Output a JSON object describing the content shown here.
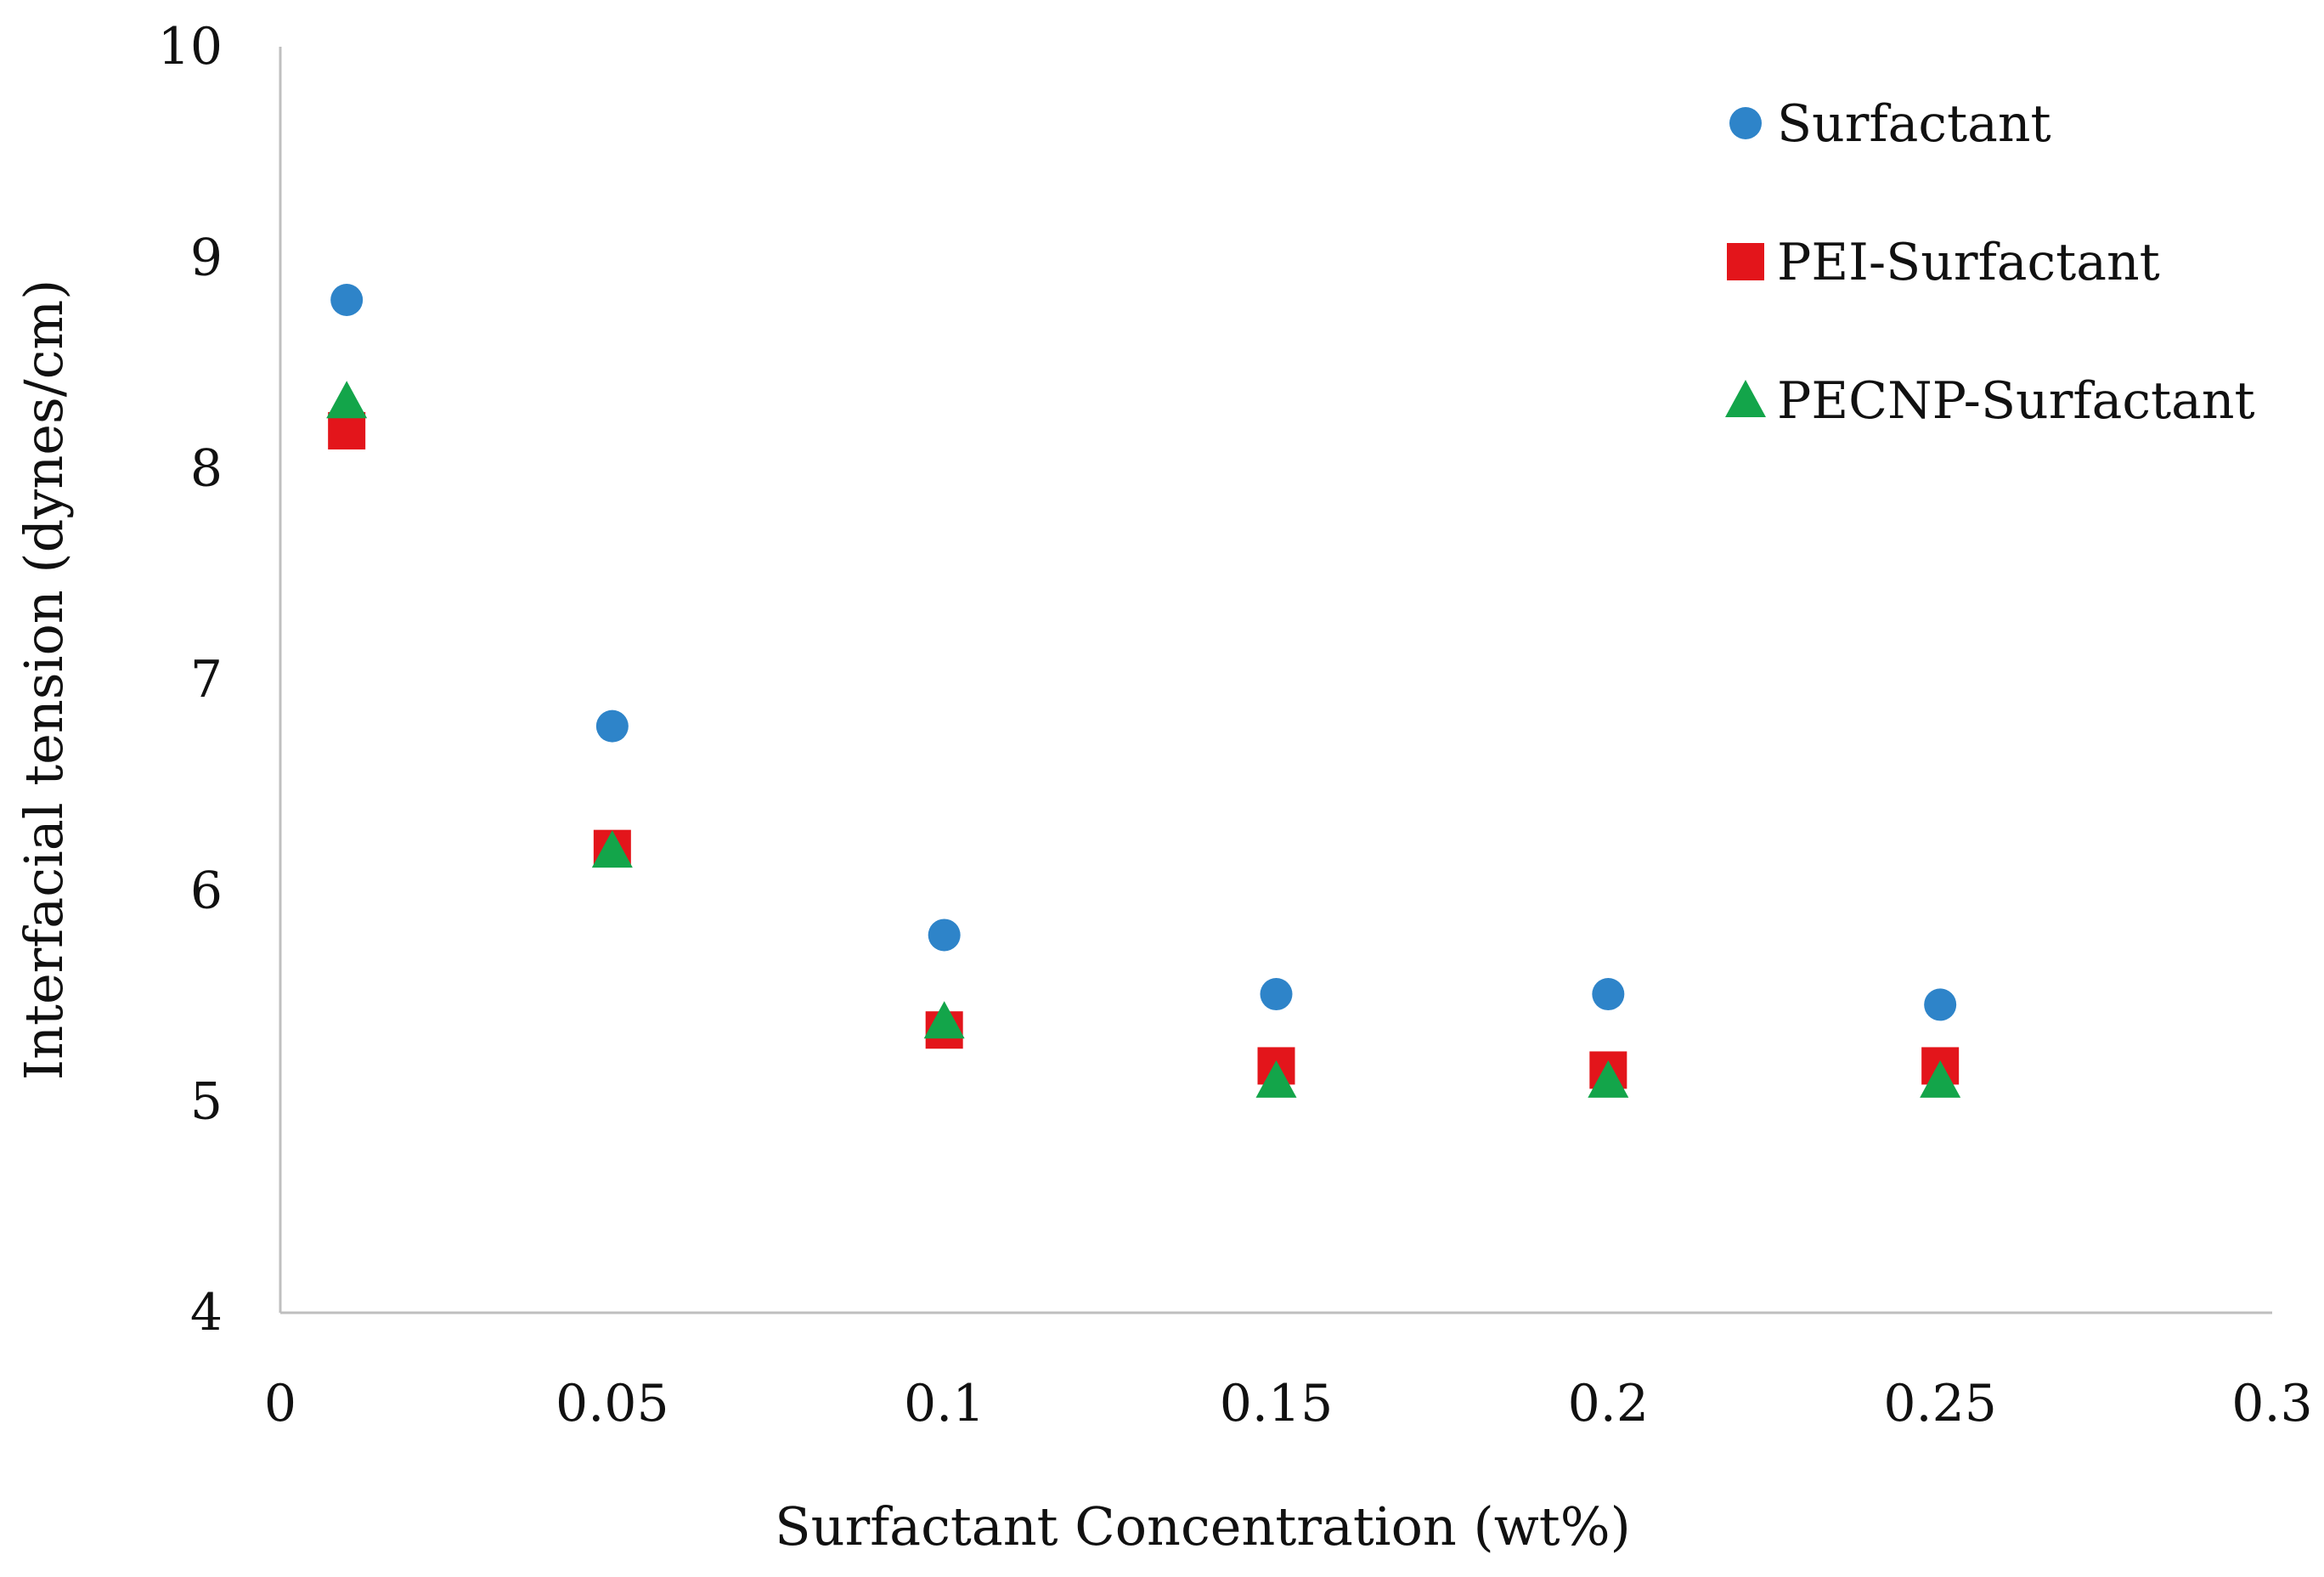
{
  "chart_data": {
    "type": "scatter",
    "title": "",
    "xlabel": "Surfactant Concentration (wt%)",
    "ylabel": "Interfacial tension (dynes/cm)",
    "xlim": [
      0,
      0.3
    ],
    "ylim": [
      4,
      10
    ],
    "x_ticks": [
      0,
      0.05,
      0.1,
      0.15,
      0.2,
      0.25,
      0.3
    ],
    "x_tick_labels": [
      "0",
      "0.05",
      "0.1",
      "0.15",
      "0.2",
      "0.25",
      "0.3"
    ],
    "y_ticks": [
      4,
      5,
      6,
      7,
      8,
      9,
      10
    ],
    "y_tick_labels": [
      "4",
      "5",
      "6",
      "7",
      "8",
      "9",
      "10"
    ],
    "grid": false,
    "legend_position": "top-right",
    "series": [
      {
        "name": "Surfactant",
        "marker": "circle",
        "color": "#2E84C9",
        "x": [
          0.01,
          0.05,
          0.1,
          0.15,
          0.2,
          0.25
        ],
        "y": [
          8.8,
          6.78,
          5.79,
          5.51,
          5.51,
          5.46
        ]
      },
      {
        "name": "PEI-Surfactant",
        "marker": "square",
        "color": "#E3151B",
        "x": [
          0.01,
          0.05,
          0.1,
          0.15,
          0.2,
          0.25
        ],
        "y": [
          8.18,
          6.2,
          5.34,
          5.17,
          5.15,
          5.17
        ]
      },
      {
        "name": "PECNP-Surfactant",
        "marker": "triangle",
        "color": "#13A54A",
        "x": [
          0.01,
          0.05,
          0.1,
          0.15,
          0.2,
          0.25
        ],
        "y": [
          8.32,
          6.19,
          5.38,
          5.1,
          5.1,
          5.1
        ]
      }
    ]
  }
}
